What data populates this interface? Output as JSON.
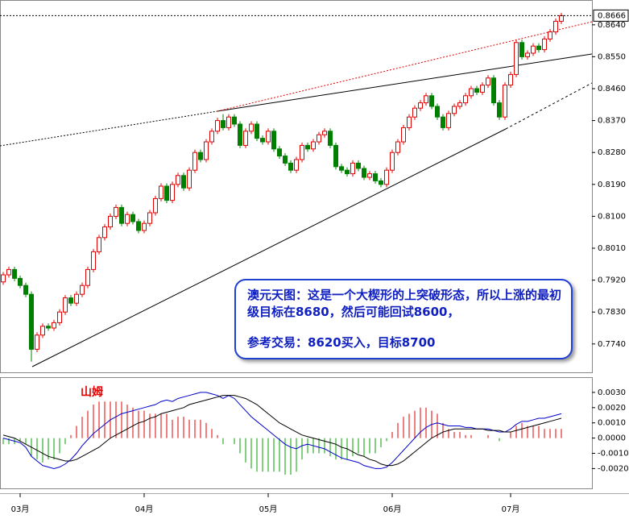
{
  "chart_data": [
    {
      "type": "candlestick",
      "categories": [
        null,
        null,
        null,
        "03月",
        null,
        null,
        null,
        null,
        null,
        null,
        null,
        null,
        null,
        null,
        null,
        null,
        null,
        null,
        null,
        null,
        null,
        null,
        null,
        null,
        null,
        "04月",
        null,
        null,
        null,
        null,
        null,
        null,
        null,
        null,
        null,
        null,
        null,
        null,
        null,
        null,
        null,
        null,
        null,
        null,
        null,
        null,
        null,
        "05月",
        null,
        null,
        null,
        null,
        null,
        null,
        null,
        null,
        null,
        null,
        null,
        null,
        null,
        null,
        null,
        null,
        null,
        null,
        null,
        null,
        null,
        "06月",
        null,
        null,
        null,
        null,
        null,
        null,
        null,
        null,
        null,
        null,
        null,
        null,
        null,
        null,
        null,
        null,
        null,
        null,
        null,
        null,
        "07月",
        null,
        null,
        null,
        null,
        null,
        null,
        null,
        null,
        null
      ],
      "open": [
        0.7915,
        0.7935,
        0.795,
        0.7925,
        0.7905,
        0.788,
        0.7725,
        0.7765,
        0.779,
        0.7785,
        0.78,
        0.783,
        0.787,
        0.7855,
        0.788,
        0.7905,
        0.795,
        0.8,
        0.804,
        0.807,
        0.81,
        0.8125,
        0.808,
        0.8105,
        0.8085,
        0.806,
        0.808,
        0.811,
        0.815,
        0.8185,
        0.8145,
        0.819,
        0.8215,
        0.818,
        0.823,
        0.828,
        0.826,
        0.831,
        0.834,
        0.837,
        0.835,
        0.838,
        0.836,
        0.83,
        0.834,
        0.836,
        0.832,
        0.831,
        0.834,
        0.829,
        0.827,
        0.825,
        0.823,
        0.826,
        0.83,
        0.829,
        0.831,
        0.833,
        0.834,
        0.83,
        0.824,
        0.823,
        0.822,
        0.825,
        0.8235,
        0.821,
        0.822,
        0.82,
        0.819,
        0.823,
        0.828,
        0.831,
        0.835,
        0.838,
        0.8405,
        0.842,
        0.844,
        0.841,
        0.838,
        0.835,
        0.839,
        0.841,
        0.842,
        0.844,
        0.846,
        0.845,
        0.847,
        0.849,
        0.842,
        0.838,
        0.847,
        0.85,
        0.859,
        0.855,
        0.856,
        0.858,
        0.857,
        0.86,
        0.862,
        0.865
      ],
      "high": [
        0.7943,
        0.7958,
        0.7958,
        0.7933,
        0.7913,
        0.7888,
        0.7773,
        0.7798,
        0.7798,
        0.7808,
        0.7838,
        0.7878,
        0.7878,
        0.7888,
        0.7913,
        0.7958,
        0.8008,
        0.8048,
        0.8078,
        0.8108,
        0.8133,
        0.8133,
        0.8113,
        0.8113,
        0.8093,
        0.8088,
        0.8118,
        0.8158,
        0.8193,
        0.8193,
        0.8198,
        0.8223,
        0.8223,
        0.8238,
        0.8288,
        0.8288,
        0.8318,
        0.8348,
        0.8378,
        0.8388,
        0.8388,
        0.8388,
        0.8368,
        0.8348,
        0.8368,
        0.8368,
        0.8328,
        0.8348,
        0.8348,
        0.8298,
        0.8278,
        0.8258,
        0.8268,
        0.8308,
        0.8308,
        0.8318,
        0.8338,
        0.8348,
        0.8348,
        0.8308,
        0.8248,
        0.8238,
        0.8258,
        0.8258,
        0.8243,
        0.8228,
        0.8228,
        0.8208,
        0.8238,
        0.8288,
        0.8318,
        0.8358,
        0.8388,
        0.8413,
        0.8428,
        0.8448,
        0.8448,
        0.8418,
        0.8388,
        0.8398,
        0.8418,
        0.8428,
        0.8448,
        0.8468,
        0.8468,
        0.8478,
        0.8498,
        0.8498,
        0.8428,
        0.8478,
        0.8508,
        0.8598,
        0.8598,
        0.8568,
        0.8588,
        0.8588,
        0.8608,
        0.8628,
        0.8658,
        0.8674
      ],
      "low": [
        0.7907,
        0.7927,
        0.7917,
        0.7897,
        0.7872,
        0.769,
        0.7717,
        0.7757,
        0.7777,
        0.7777,
        0.7792,
        0.7822,
        0.7847,
        0.7847,
        0.7872,
        0.7897,
        0.7942,
        0.7992,
        0.8032,
        0.8062,
        0.8092,
        0.8072,
        0.8072,
        0.8077,
        0.8052,
        0.8052,
        0.8072,
        0.8102,
        0.8142,
        0.8137,
        0.8137,
        0.8182,
        0.8172,
        0.8172,
        0.8222,
        0.8252,
        0.8252,
        0.8302,
        0.8332,
        0.8342,
        0.8342,
        0.8352,
        0.8292,
        0.8292,
        0.8332,
        0.8312,
        0.8302,
        0.8302,
        0.8282,
        0.8262,
        0.8242,
        0.8222,
        0.8222,
        0.8252,
        0.8282,
        0.8282,
        0.8302,
        0.8322,
        0.8292,
        0.8232,
        0.8222,
        0.8212,
        0.8212,
        0.8227,
        0.8202,
        0.8202,
        0.8192,
        0.8182,
        0.8182,
        0.8222,
        0.8272,
        0.8302,
        0.8342,
        0.8372,
        0.8397,
        0.8412,
        0.8402,
        0.8372,
        0.8342,
        0.8342,
        0.8382,
        0.8402,
        0.8412,
        0.8432,
        0.8442,
        0.8442,
        0.8462,
        0.8412,
        0.8372,
        0.8372,
        0.8462,
        0.8492,
        0.8542,
        0.8542,
        0.8552,
        0.8562,
        0.8562,
        0.8592,
        0.8612,
        0.8642
      ],
      "close": [
        0.7935,
        0.795,
        0.7925,
        0.7905,
        0.788,
        0.7725,
        0.7765,
        0.779,
        0.7785,
        0.78,
        0.783,
        0.787,
        0.7855,
        0.788,
        0.7905,
        0.795,
        0.8,
        0.804,
        0.807,
        0.81,
        0.8125,
        0.808,
        0.8105,
        0.8085,
        0.806,
        0.808,
        0.811,
        0.815,
        0.8185,
        0.8145,
        0.819,
        0.8215,
        0.818,
        0.823,
        0.828,
        0.826,
        0.831,
        0.834,
        0.837,
        0.835,
        0.838,
        0.836,
        0.83,
        0.834,
        0.836,
        0.832,
        0.831,
        0.834,
        0.829,
        0.827,
        0.825,
        0.823,
        0.826,
        0.83,
        0.829,
        0.831,
        0.833,
        0.834,
        0.83,
        0.824,
        0.823,
        0.822,
        0.825,
        0.8235,
        0.821,
        0.822,
        0.82,
        0.819,
        0.823,
        0.828,
        0.831,
        0.835,
        0.838,
        0.8405,
        0.842,
        0.844,
        0.841,
        0.838,
        0.835,
        0.839,
        0.841,
        0.842,
        0.844,
        0.846,
        0.845,
        0.847,
        0.849,
        0.842,
        0.838,
        0.847,
        0.85,
        0.859,
        0.855,
        0.856,
        0.858,
        0.857,
        0.86,
        0.862,
        0.865,
        0.8666
      ],
      "up_color": "#e00000",
      "down_color": "#008000",
      "ylim": [
        0.766,
        0.871
      ],
      "yticks": [
        {
          "value": 0.774,
          "label": "0.7740"
        },
        {
          "value": 0.783,
          "label": "0.7830"
        },
        {
          "value": 0.792,
          "label": "0.7920"
        },
        {
          "value": 0.801,
          "label": "0.8010"
        },
        {
          "value": 0.81,
          "label": "0.8100"
        },
        {
          "value": 0.819,
          "label": "0.8190"
        },
        {
          "value": 0.828,
          "label": "0.8280"
        },
        {
          "value": 0.837,
          "label": "0.8370"
        },
        {
          "value": 0.846,
          "label": "0.8460"
        },
        {
          "value": 0.855,
          "label": "0.8550"
        },
        {
          "value": 0.864,
          "label": "0.8640"
        }
      ],
      "annotations": [
        "澳元天图：这是一个大楔形的上突破形态，所以上涨的最初级目标在8680，然后可能回试8600，",
        "参考交易：8620买入，目标8700"
      ]
    },
    {
      "type": "macd",
      "signature": "山姆",
      "values": [
        -0.0004,
        -0.0004,
        -0.0004,
        -0.0002,
        -0.0004,
        -0.0012,
        -0.0014,
        -0.0016,
        -0.0014,
        -0.0014,
        -0.001,
        -0.0004,
        0.0002,
        0.0008,
        0.0014,
        0.0018,
        0.0022,
        0.0024,
        0.0024,
        0.0024,
        0.0024,
        0.0024,
        0.0022,
        0.002,
        0.0018,
        0.0018,
        0.0016,
        0.0016,
        0.0016,
        0.0016,
        0.0012,
        0.0014,
        0.0014,
        0.0012,
        0.0012,
        0.0012,
        0.001,
        0.0006,
        0.0002,
        -0.0004,
        0,
        -0.0004,
        -0.001,
        -0.0016,
        -0.002,
        -0.0022,
        -0.0022,
        -0.0022,
        -0.0022,
        -0.0022,
        -0.0024,
        -0.0024,
        -0.0022,
        -0.0014,
        -0.001,
        -0.001,
        -0.001,
        -0.001,
        -0.0012,
        -0.0014,
        -0.0014,
        -0.0014,
        -0.0012,
        -0.001,
        -0.0012,
        -0.001,
        -0.001,
        -0.0006,
        -0.0002,
        0.0004,
        0.001,
        0.0014,
        0.0016,
        0.0018,
        0.002,
        0.002,
        0.0018,
        0.0016,
        0.001,
        0.0006,
        0.0004,
        0.0004,
        0.0002,
        0.0002,
        0,
        0,
        0.0002,
        0,
        -0.0002,
        0,
        0.0004,
        0.0008,
        0.001,
        0.0008,
        0.0008,
        0.0008,
        0.0006,
        0.0006,
        0.0006,
        0.0006
      ],
      "up_color": "#e00000",
      "down_color": "#00a000",
      "series": [
        {
          "color": "#0000cc",
          "values": [
            0,
            -0.0001,
            -0.0002,
            -0.0003,
            -0.0006,
            -0.0012,
            -0.0015,
            -0.0018,
            -0.0019,
            -0.002,
            -0.0019,
            -0.0017,
            -0.0014,
            -0.001,
            -0.0005,
            -0.0001,
            0.0003,
            0.0006,
            0.0009,
            0.0012,
            0.0014,
            0.0016,
            0.0017,
            0.0018,
            0.0019,
            0.002,
            0.0021,
            0.0022,
            0.0024,
            0.0025,
            0.0024,
            0.0026,
            0.0027,
            0.0028,
            0.0029,
            0.003,
            0.003,
            0.0029,
            0.0028,
            0.0026,
            0.0028,
            0.0026,
            0.0022,
            0.0018,
            0.0014,
            0.0011,
            0.0008,
            0.0005,
            0.0002,
            -0.0001,
            -0.0004,
            -0.0006,
            -0.0007,
            -0.0005,
            -0.0004,
            -0.0005,
            -0.0006,
            -0.0007,
            -0.0009,
            -0.0011,
            -0.0013,
            -0.0014,
            -0.0015,
            -0.0016,
            -0.0018,
            -0.0019,
            -0.002,
            -0.002,
            -0.0019,
            -0.0016,
            -0.0012,
            -0.0008,
            -0.0004,
            0,
            0.0004,
            0.0007,
            0.0009,
            0.001,
            0.0009,
            0.0008,
            0.0008,
            0.0008,
            0.0007,
            0.0007,
            0.0006,
            0.0006,
            0.0006,
            0.0005,
            0.0004,
            0.0004,
            0.0006,
            0.0009,
            0.0011,
            0.0011,
            0.0012,
            0.0013,
            0.0013,
            0.0014,
            0.0015,
            0.0016
          ]
        },
        {
          "color": "#000000",
          "values": [
            0.0002,
            0.0001,
            0,
            -0.0002,
            -0.0004,
            -0.0006,
            -0.0008,
            -0.001,
            -0.0012,
            -0.0013,
            -0.0014,
            -0.0015,
            -0.0015,
            -0.0014,
            -0.0012,
            -0.001,
            -0.0008,
            -0.0006,
            -0.0003,
            0,
            0.0002,
            0.0004,
            0.0006,
            0.0008,
            0.001,
            0.0011,
            0.0013,
            0.0014,
            0.0016,
            0.0017,
            0.0018,
            0.0019,
            0.002,
            0.0022,
            0.0023,
            0.0024,
            0.0025,
            0.0026,
            0.0027,
            0.0028,
            0.0028,
            0.0028,
            0.0027,
            0.0026,
            0.0024,
            0.0022,
            0.0019,
            0.0016,
            0.0013,
            0.001,
            0.0008,
            0.0006,
            0.0004,
            0.0002,
            0.0001,
            0,
            -0.0001,
            -0.0002,
            -0.0003,
            -0.0004,
            -0.0006,
            -0.0007,
            -0.0009,
            -0.0011,
            -0.0012,
            -0.0014,
            -0.0015,
            -0.0017,
            -0.0018,
            -0.0018,
            -0.0017,
            -0.0015,
            -0.0012,
            -0.0009,
            -0.0006,
            -0.0003,
            0,
            0.0002,
            0.0004,
            0.0005,
            0.0006,
            0.0006,
            0.0006,
            0.0006,
            0.0006,
            0.0006,
            0.0005,
            0.0005,
            0.0005,
            0.0004,
            0.0004,
            0.0005,
            0.0006,
            0.0007,
            0.0008,
            0.0009,
            0.001,
            0.0011,
            0.0012,
            0.0013
          ]
        }
      ],
      "ylim": [
        -0.0033,
        0.004
      ],
      "yticks": [
        {
          "value": -0.002,
          "label": "-0.0020"
        },
        {
          "value": -0.001,
          "label": "-0.0010"
        },
        {
          "value": 0,
          "label": "0.0000"
        },
        {
          "value": 0.001,
          "label": "0.0010"
        },
        {
          "value": 0.002,
          "label": "0.0020"
        },
        {
          "value": 0.003,
          "label": "0.0030"
        }
      ]
    }
  ]
}
